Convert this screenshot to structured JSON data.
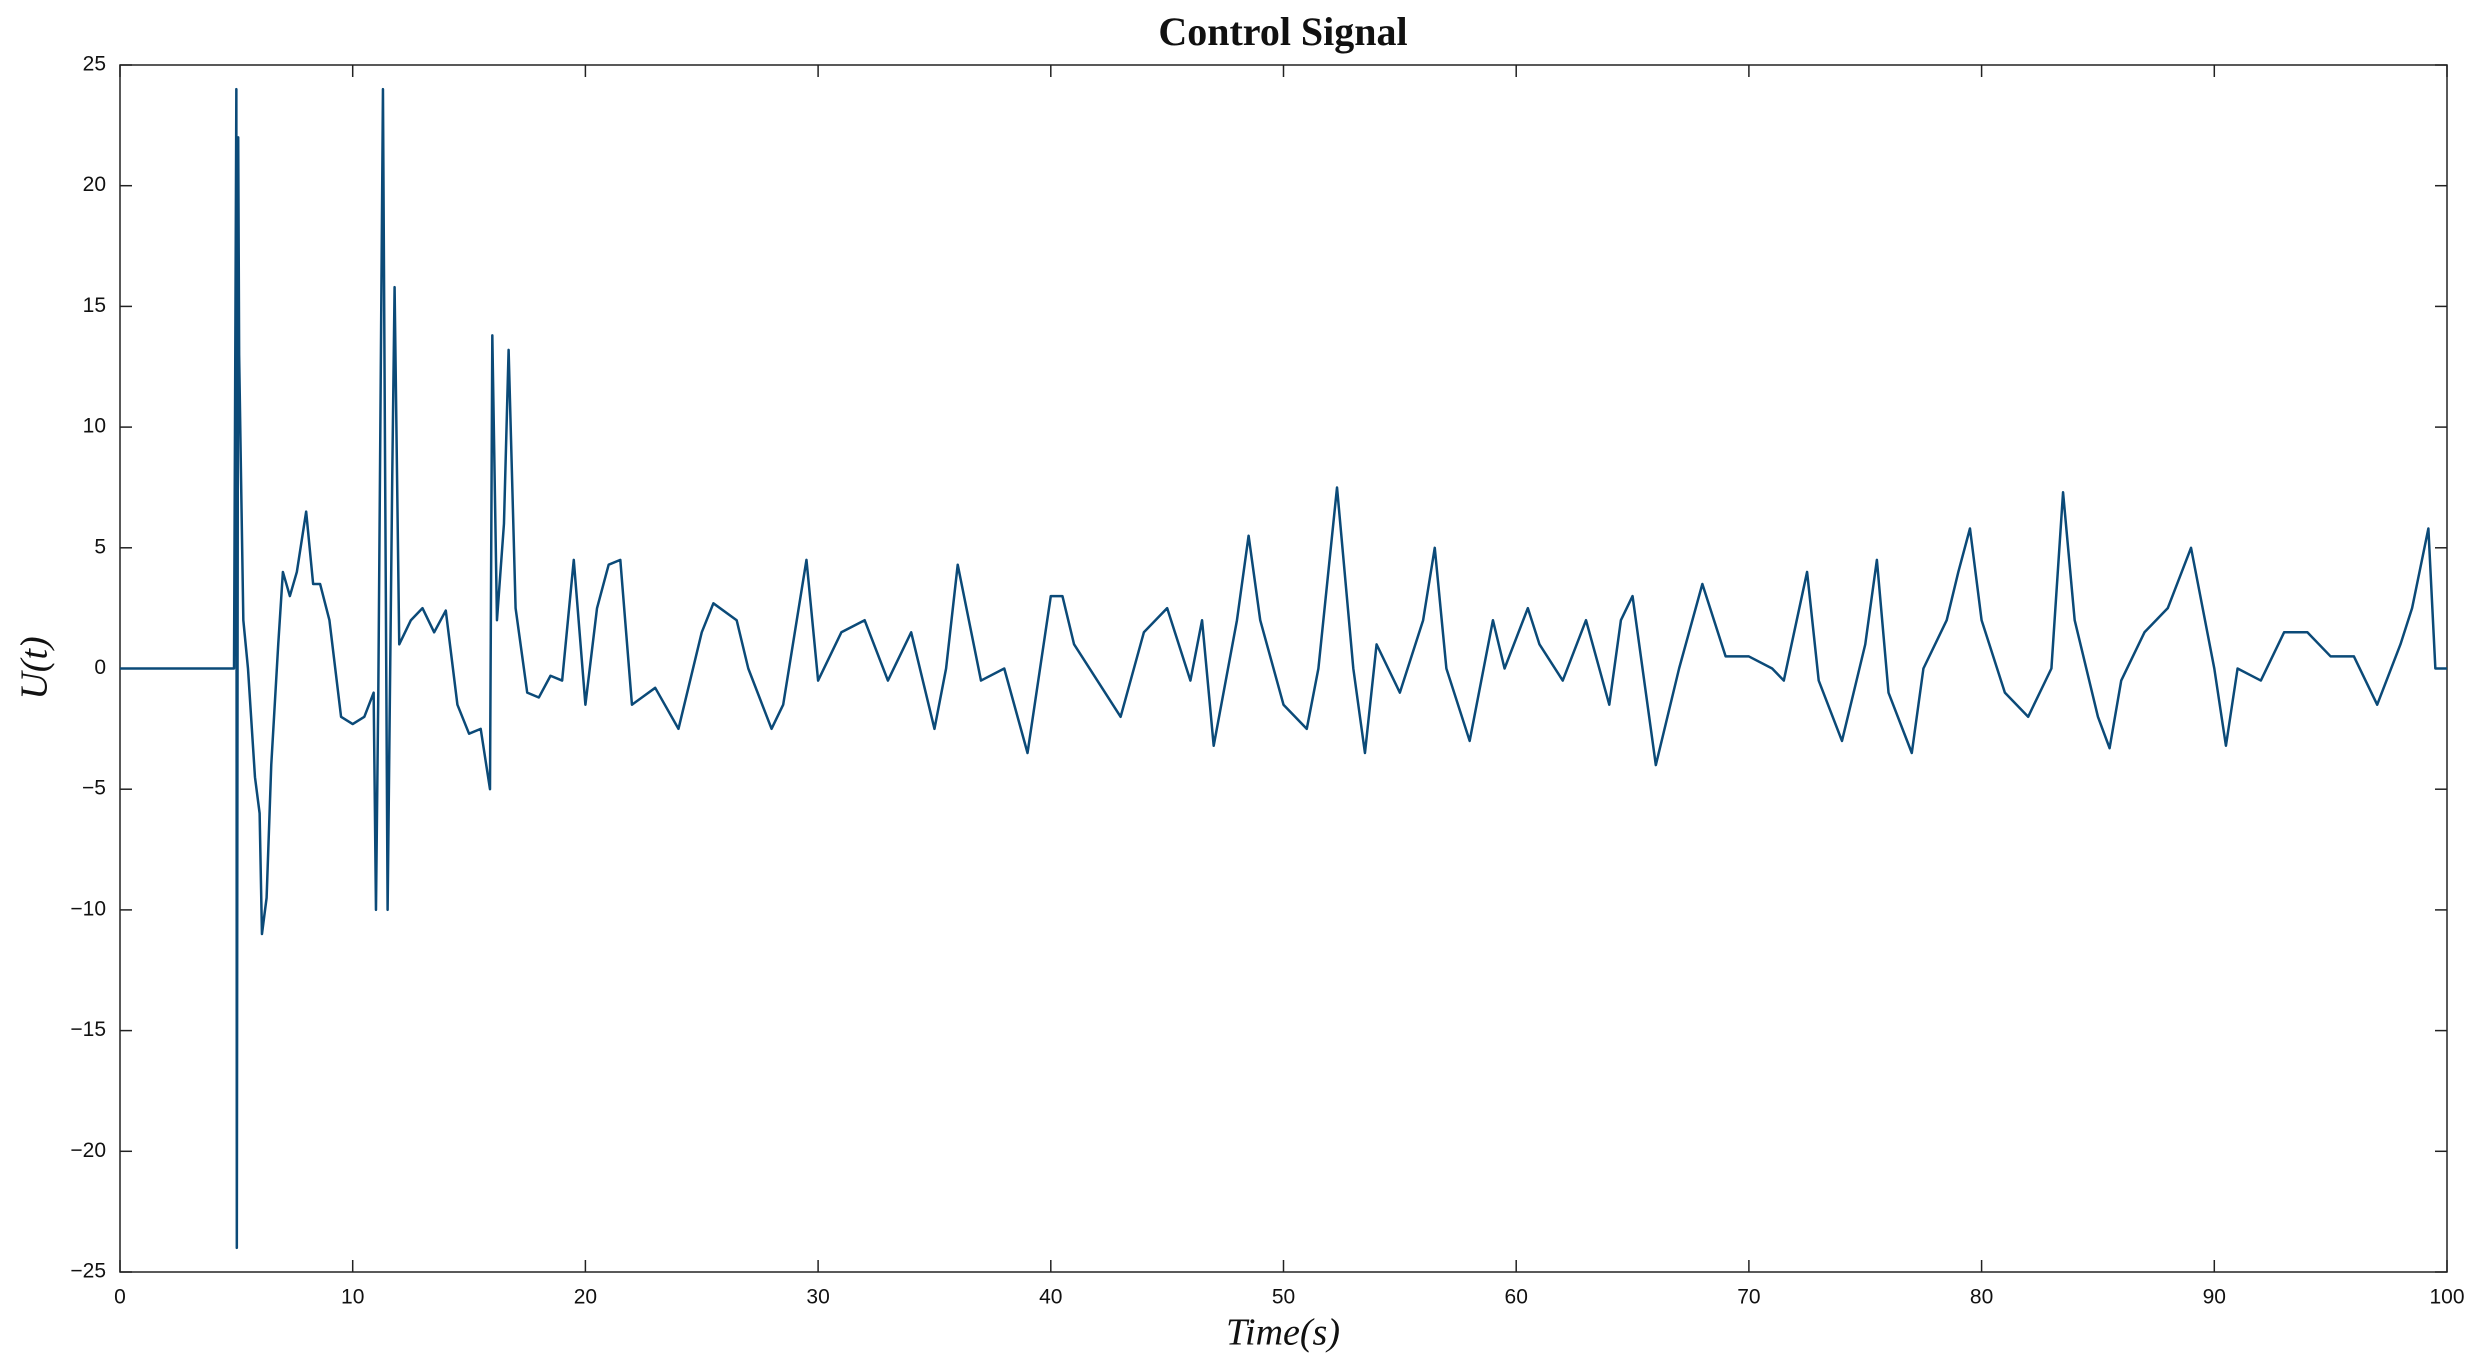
{
  "chart_data": {
    "type": "line",
    "title": "Control Signal",
    "x_label": "Time(s)",
    "y_label": "U(t)",
    "color": "#0b4a78",
    "xlim": [
      0,
      100
    ],
    "xticks": [
      0,
      10,
      20,
      30,
      40,
      50,
      60,
      70,
      80,
      90,
      100
    ],
    "ylim": [
      -25,
      25
    ],
    "yticks": [
      {
        "value": -25,
        "label": "−25"
      },
      {
        "value": -20,
        "label": "−20"
      },
      {
        "value": -15,
        "label": "−15"
      },
      {
        "value": -10,
        "label": "−10"
      },
      {
        "value": -5,
        "label": "−5"
      },
      0,
      5,
      10,
      15,
      20,
      25
    ],
    "x": [
      0,
      4.9,
      5.0,
      5.02,
      5.08,
      5.12,
      5.2,
      5.3,
      5.5,
      5.8,
      6.0,
      6.1,
      6.3,
      6.5,
      6.8,
      7.0,
      7.3,
      7.6,
      8.0,
      8.3,
      8.6,
      9.0,
      9.5,
      10.0,
      10.5,
      10.9,
      11.0,
      11.1,
      11.3,
      11.5,
      11.7,
      11.8,
      12.0,
      12.5,
      13.0,
      13.5,
      14.0,
      14.5,
      15.0,
      15.5,
      15.9,
      16.0,
      16.2,
      16.5,
      16.7,
      17.0,
      17.5,
      18.0,
      18.5,
      19.0,
      19.5,
      20.0,
      20.5,
      21.0,
      21.5,
      22.0,
      23.0,
      24.0,
      25.0,
      25.5,
      26.5,
      27.0,
      28.0,
      28.5,
      29.5,
      30.0,
      31.0,
      32.0,
      33.0,
      34.0,
      35.0,
      35.5,
      36.0,
      37.0,
      38.0,
      39.0,
      40.0,
      40.5,
      41.0,
      42.0,
      43.0,
      44.0,
      45.0,
      46.0,
      46.5,
      47.0,
      48.0,
      48.5,
      49.0,
      50.0,
      51.0,
      51.5,
      52.3,
      53.0,
      53.5,
      54.0,
      55.0,
      56.0,
      56.5,
      57.0,
      58.0,
      59.0,
      59.5,
      60.5,
      61.0,
      62.0,
      63.0,
      64.0,
      64.5,
      65.0,
      66.0,
      67.0,
      68.0,
      69.0,
      70.0,
      71.0,
      71.5,
      72.5,
      73.0,
      74.0,
      75.0,
      75.5,
      76.0,
      77.0,
      77.5,
      78.5,
      79.0,
      79.5,
      80.0,
      81.0,
      82.0,
      83.0,
      83.5,
      84.0,
      85.0,
      85.5,
      86.0,
      87.0,
      88.0,
      89.0,
      90.0,
      90.5,
      91.0,
      92.0,
      93.0,
      94.0,
      95.0,
      96.0,
      97.0,
      98.0,
      98.5,
      99.2,
      99.5,
      100.0
    ],
    "values": [
      0,
      0,
      24,
      -24,
      22,
      13,
      8,
      2,
      0,
      -4.5,
      -6,
      -11,
      -9.5,
      -4,
      1,
      4,
      3,
      4,
      6.5,
      3.5,
      3.5,
      2,
      -2,
      -2.3,
      -2,
      -1,
      -10,
      -1,
      24,
      -10,
      8,
      15.8,
      1,
      2,
      2.5,
      1.5,
      2.4,
      -1.5,
      -2.7,
      -2.5,
      -5,
      13.8,
      2,
      6,
      13.2,
      2.5,
      -1,
      -1.2,
      -0.3,
      -0.5,
      4.5,
      -1.5,
      2.5,
      4.3,
      4.5,
      -1.5,
      -0.8,
      -2.5,
      1.5,
      2.7,
      2,
      0,
      -2.5,
      -1.5,
      4.5,
      -0.5,
      1.5,
      2,
      -0.5,
      1.5,
      -2.5,
      0,
      4.3,
      -0.5,
      0,
      -3.5,
      3,
      3,
      1,
      -0.5,
      -2,
      1.5,
      2.5,
      -0.5,
      2,
      -3.2,
      2,
      5.5,
      2,
      -1.5,
      -2.5,
      0,
      7.5,
      0,
      -3.5,
      1,
      -1,
      2,
      5,
      0,
      -3,
      2,
      0,
      2.5,
      1,
      -0.5,
      2,
      -1.5,
      2,
      3,
      -4,
      0,
      3.5,
      0.5,
      0.5,
      0,
      -0.5,
      4,
      -0.5,
      -3,
      1,
      4.5,
      -1,
      -3.5,
      0,
      2,
      4,
      5.8,
      2,
      -1,
      -2,
      0,
      7.3,
      2,
      -2,
      -3.3,
      -0.5,
      1.5,
      2.5,
      5,
      0,
      -3.2,
      0,
      -0.5,
      1.5,
      1.5,
      0.5,
      0.5,
      -1.5,
      1,
      2.5,
      5.8,
      0,
      0
    ]
  }
}
